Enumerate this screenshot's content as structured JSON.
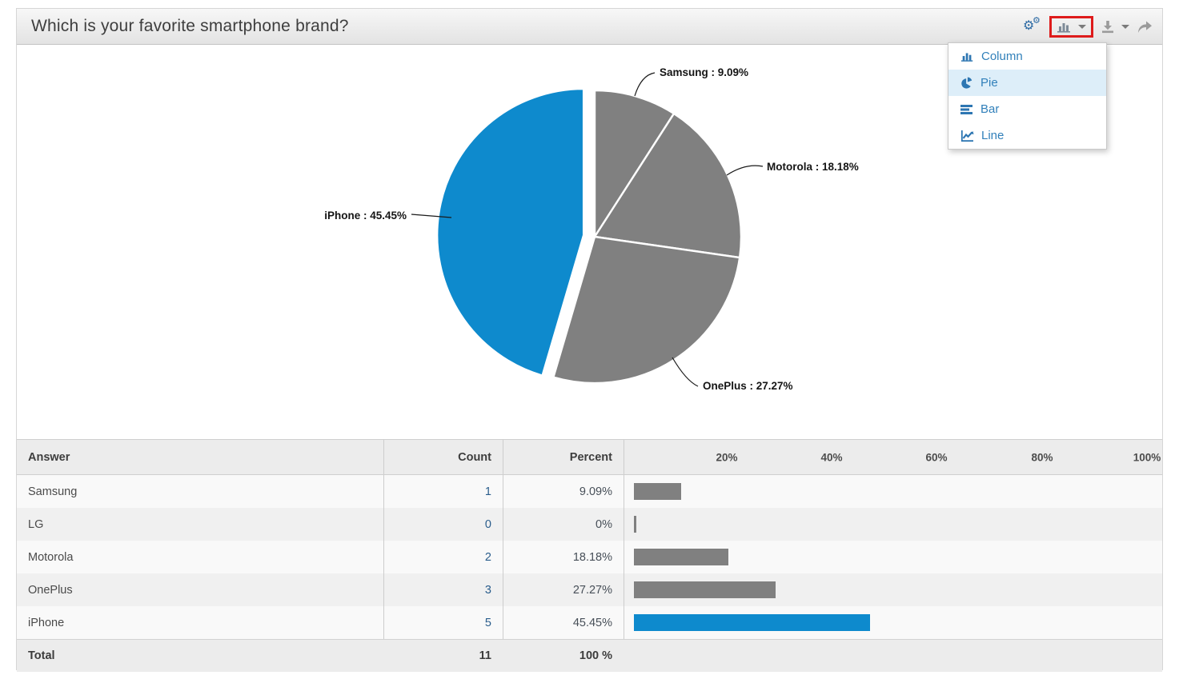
{
  "header": {
    "title": "Which is your favorite smartphone brand?",
    "toolbar": {
      "settings_icon": "gears-icon",
      "chart_type_button": {
        "icon": "column-chart-icon",
        "highlighted": true
      },
      "download_button": {
        "icon": "download-icon"
      },
      "share_button": {
        "icon": "share-arrow-icon"
      }
    }
  },
  "chart_menu": {
    "items": [
      {
        "label": "Column",
        "icon": "column-chart-icon",
        "selected": false
      },
      {
        "label": "Pie",
        "icon": "pie-chart-icon",
        "selected": true
      },
      {
        "label": "Bar",
        "icon": "bar-chart-icon",
        "selected": false
      },
      {
        "label": "Line",
        "icon": "line-chart-icon",
        "selected": false
      }
    ]
  },
  "chart_data": {
    "type": "pie",
    "title": "Which is your favorite smartphone brand?",
    "start_angle_deg": 0,
    "clockwise": true,
    "slices": [
      {
        "label": "Samsung",
        "count": 1,
        "percent": 9.09,
        "color": "#808080",
        "callout": "Samsung : 9.09%",
        "exploded": false
      },
      {
        "label": "Motorola",
        "count": 2,
        "percent": 18.18,
        "color": "#808080",
        "callout": "Motorola : 18.18%",
        "exploded": false
      },
      {
        "label": "OnePlus",
        "count": 3,
        "percent": 27.27,
        "color": "#808080",
        "callout": "OnePlus : 27.27%",
        "exploded": false
      },
      {
        "label": "iPhone",
        "count": 5,
        "percent": 45.45,
        "color": "#0e8acd",
        "callout": "iPhone : 45.45%",
        "exploded": true
      }
    ]
  },
  "table": {
    "columns": [
      "Answer",
      "Count",
      "Percent"
    ],
    "axis_ticks": [
      "20%",
      "40%",
      "60%",
      "80%",
      "100%"
    ],
    "rows": [
      {
        "answer": "Samsung",
        "count": "1",
        "percent": "9.09%",
        "percent_value": 9.09,
        "bar_color": "#808080"
      },
      {
        "answer": "LG",
        "count": "0",
        "percent": "0%",
        "percent_value": 0,
        "bar_color": "#808080"
      },
      {
        "answer": "Motorola",
        "count": "2",
        "percent": "18.18%",
        "percent_value": 18.18,
        "bar_color": "#808080"
      },
      {
        "answer": "OnePlus",
        "count": "3",
        "percent": "27.27%",
        "percent_value": 27.27,
        "bar_color": "#808080"
      },
      {
        "answer": "iPhone",
        "count": "5",
        "percent": "45.45%",
        "percent_value": 45.45,
        "bar_color": "#0e8acd"
      }
    ],
    "total": {
      "label": "Total",
      "count": "11",
      "percent": "100 %"
    }
  },
  "colors": {
    "accent_blue": "#0e8acd",
    "slice_gray": "#808080",
    "menu_blue": "#3180ba",
    "highlight_red": "#de1b1b"
  }
}
